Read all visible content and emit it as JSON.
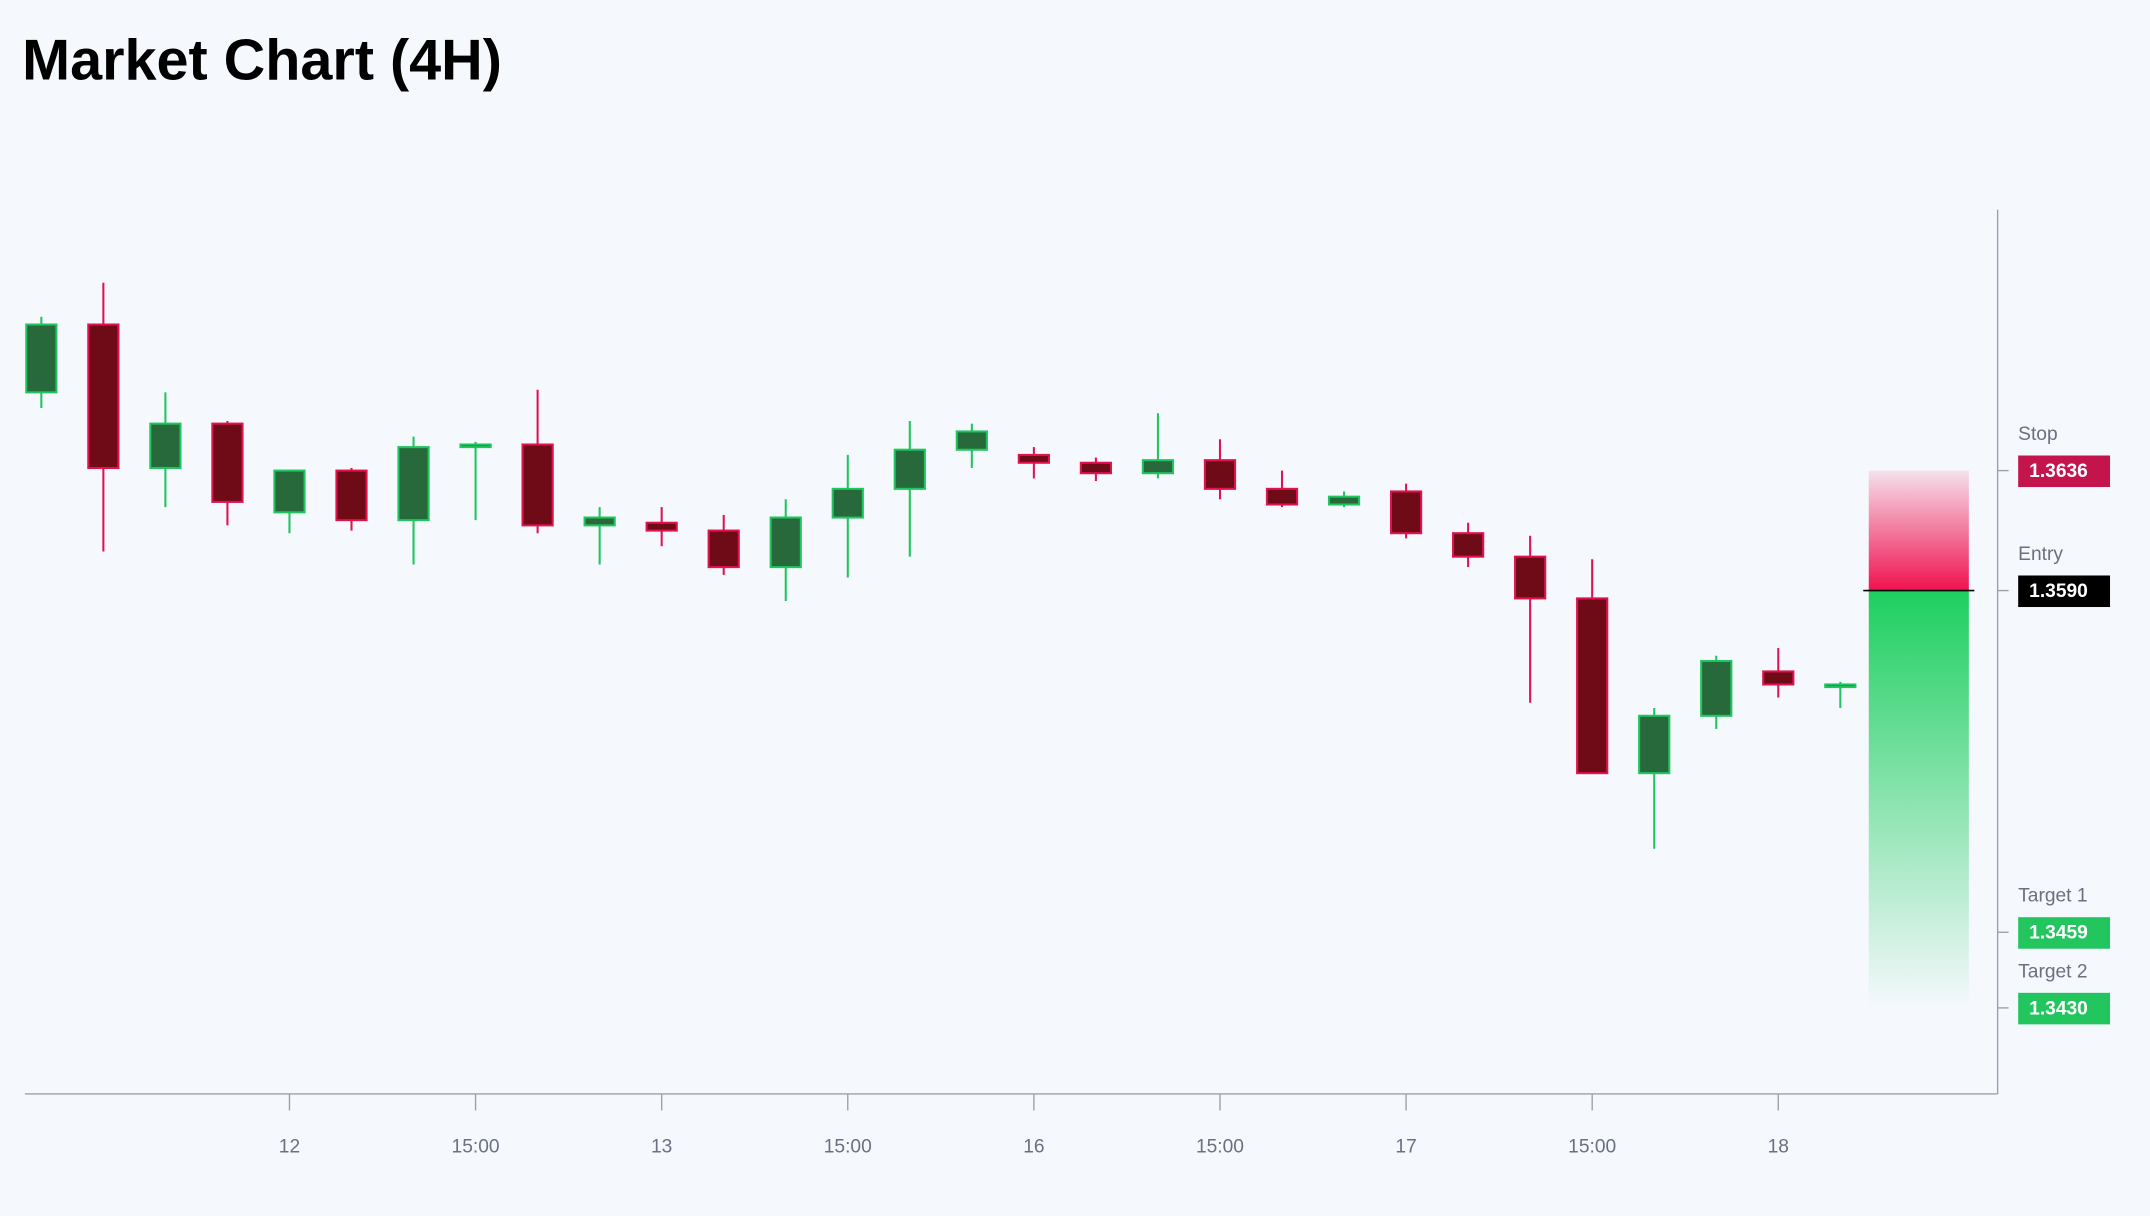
{
  "chart_data": {
    "type": "candlestick",
    "title": "Market Chart (4H)",
    "categories": [
      null,
      null,
      null,
      null,
      "12",
      null,
      null,
      "15:00",
      null,
      null,
      "13",
      null,
      null,
      "15:00",
      null,
      null,
      "16",
      null,
      null,
      "15:00",
      null,
      null,
      "17",
      null,
      null,
      "15:00",
      null,
      null,
      "18",
      null
    ],
    "open": [
      1.3666,
      1.3692,
      1.3637,
      1.3654,
      1.362,
      1.3636,
      1.3617,
      1.3645,
      1.3646,
      1.3615,
      1.3616,
      1.3613,
      1.3599,
      1.3618,
      1.3629,
      1.3644,
      1.3642,
      1.3639,
      1.3635,
      1.364,
      1.3629,
      1.3623,
      1.3628,
      1.3612,
      1.3603,
      1.3587,
      1.352,
      1.3542,
      1.3559,
      1.3553
    ],
    "high": [
      1.3695,
      1.3708,
      1.3666,
      1.3655,
      1.3636,
      1.3637,
      1.3649,
      1.3647,
      1.3667,
      1.3622,
      1.3622,
      1.3619,
      1.3625,
      1.3642,
      1.3655,
      1.3654,
      1.3645,
      1.3641,
      1.3658,
      1.3648,
      1.3636,
      1.3628,
      1.3631,
      1.3616,
      1.3611,
      1.3602,
      1.3545,
      1.3565,
      1.3568,
      1.3555
    ],
    "low": [
      1.366,
      1.3605,
      1.3622,
      1.3615,
      1.3612,
      1.3613,
      1.36,
      1.3617,
      1.3612,
      1.36,
      1.3607,
      1.3596,
      1.3586,
      1.3595,
      1.3603,
      1.3637,
      1.3633,
      1.3632,
      1.3633,
      1.3625,
      1.3622,
      1.3622,
      1.361,
      1.3599,
      1.3547,
      1.352,
      1.3491,
      1.3537,
      1.3549,
      1.3545
    ],
    "close": [
      1.3692,
      1.3637,
      1.3654,
      1.3624,
      1.3636,
      1.3617,
      1.3645,
      1.3646,
      1.3615,
      1.3618,
      1.3613,
      1.3599,
      1.3618,
      1.3629,
      1.3644,
      1.3651,
      1.3639,
      1.3635,
      1.364,
      1.3629,
      1.3623,
      1.3626,
      1.3612,
      1.3603,
      1.3587,
      1.352,
      1.3542,
      1.3563,
      1.3554,
      1.3554
    ],
    "up_color": "#1fc55e",
    "up_fill": "#27693a",
    "down_color": "#e0124f",
    "down_fill": "#6e0b17",
    "ylim": [
      1.3397,
      1.3736
    ],
    "levels": {
      "names": [
        "Stop",
        "Entry",
        "Target 1",
        "Target 2"
      ],
      "values": [
        1.3636,
        1.359,
        1.3459,
        1.343
      ],
      "value_labels": [
        "1.3636",
        "1.3590",
        "1.3459",
        "1.3430"
      ],
      "colors": [
        "#c4144c",
        "#000000",
        "#22c55e",
        "#22c55e"
      ]
    }
  }
}
